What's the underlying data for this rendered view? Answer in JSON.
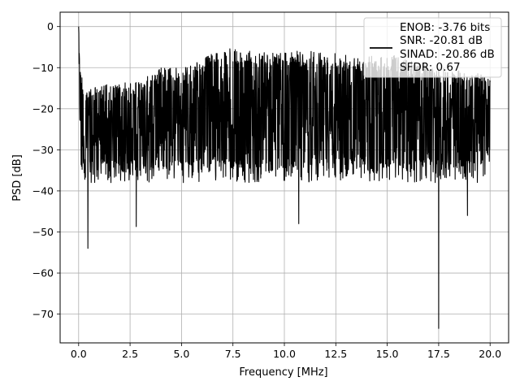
{
  "chart_data": {
    "type": "line",
    "title": "",
    "xlabel": "Frequency [MHz]",
    "ylabel": "PSD [dB]",
    "xlim": [
      -0.9,
      20.9
    ],
    "ylim": [
      -77,
      3.5
    ],
    "xticks": [
      0.0,
      2.5,
      5.0,
      7.5,
      10.0,
      12.5,
      15.0,
      17.5,
      20.0
    ],
    "xtick_labels": [
      "0.0",
      "2.5",
      "5.0",
      "7.5",
      "10.0",
      "12.5",
      "15.0",
      "17.5",
      "20.0"
    ],
    "yticks": [
      0,
      -10,
      -20,
      -30,
      -40,
      -50,
      -60,
      -70
    ],
    "ytick_labels": [
      "0",
      "−10",
      "−20",
      "−30",
      "−40",
      "−50",
      "−60",
      "−70"
    ],
    "grid": true,
    "legend_position": "top-right",
    "legend_lines": [
      "ENOB: -3.76 bits",
      "SNR: -20.81 dB",
      "SINAD: -20.86 dB",
      "SFDR: 0.67"
    ],
    "series": [
      {
        "color": "#000000",
        "frequency_range_mhz": [
          0.0,
          20.0
        ],
        "envelope_points": [
          {
            "x": 0.0,
            "upper": 0.0,
            "lower": -25
          },
          {
            "x": 0.1,
            "upper": -10,
            "lower": -35
          },
          {
            "x": 0.3,
            "upper": -14,
            "lower": -43
          },
          {
            "x": 0.45,
            "upper": -15,
            "lower": -54
          },
          {
            "x": 1.0,
            "upper": -14,
            "lower": -38
          },
          {
            "x": 2.0,
            "upper": -14,
            "lower": -44
          },
          {
            "x": 2.8,
            "upper": -13,
            "lower": -48.7
          },
          {
            "x": 4.0,
            "upper": -10,
            "lower": -44
          },
          {
            "x": 5.0,
            "upper": -10,
            "lower": -42
          },
          {
            "x": 6.0,
            "upper": -8,
            "lower": -42
          },
          {
            "x": 7.0,
            "upper": -5,
            "lower": -39
          },
          {
            "x": 8.0,
            "upper": -6,
            "lower": -42
          },
          {
            "x": 10.0,
            "upper": -6,
            "lower": -46
          },
          {
            "x": 12.0,
            "upper": -6,
            "lower": -44
          },
          {
            "x": 14.0,
            "upper": -7,
            "lower": -40
          },
          {
            "x": 15.5,
            "upper": -7,
            "lower": -40
          },
          {
            "x": 17.0,
            "upper": -9,
            "lower": -42
          },
          {
            "x": 17.5,
            "upper": -10,
            "lower": -73.5
          },
          {
            "x": 18.0,
            "upper": -10,
            "lower": -43
          },
          {
            "x": 18.9,
            "upper": -11,
            "lower": -46
          },
          {
            "x": 20.0,
            "upper": -12,
            "lower": -34
          }
        ],
        "notable_points": [
          {
            "x": 0.0,
            "y": 0.0
          },
          {
            "x": 0.45,
            "y": -54
          },
          {
            "x": 2.8,
            "y": -48.7
          },
          {
            "x": 10.7,
            "y": -48
          },
          {
            "x": 17.5,
            "y": -73.5
          },
          {
            "x": 18.9,
            "y": -46
          }
        ]
      }
    ]
  }
}
